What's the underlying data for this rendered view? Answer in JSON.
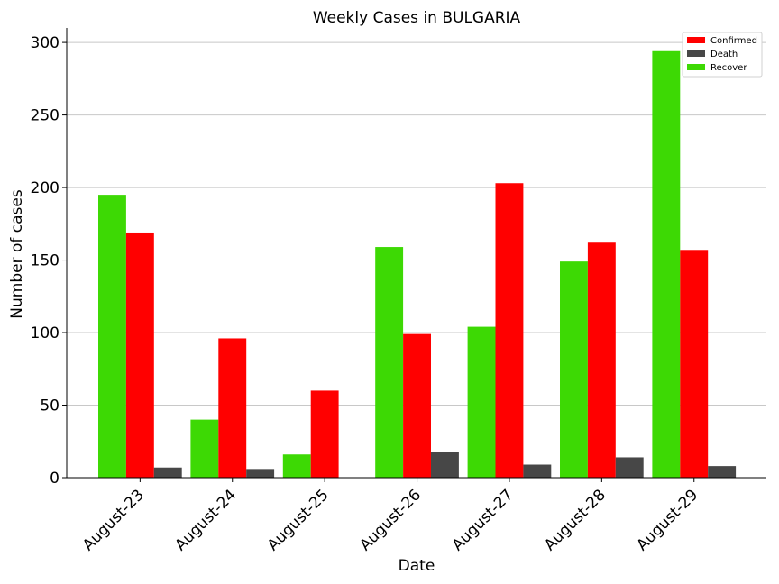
{
  "chart_data": {
    "type": "bar",
    "title": "Weekly Cases in BULGARIA",
    "xlabel": "Date",
    "ylabel": "Number of cases",
    "ylim": [
      0,
      310
    ],
    "yticks": [
      0,
      50,
      100,
      150,
      200,
      250,
      300
    ],
    "grid": "horizontal",
    "legend_position": "top-right",
    "categories": [
      "August-23",
      "August-24",
      "August-25",
      "August-26",
      "August-27",
      "August-28",
      "August-29"
    ],
    "series": [
      {
        "name": "Recover",
        "color": "#3dd904",
        "values": [
          195,
          40,
          16,
          159,
          104,
          149,
          294
        ]
      },
      {
        "name": "Confirmed",
        "color": "#ff0000",
        "values": [
          169,
          96,
          60,
          99,
          203,
          162,
          157
        ]
      },
      {
        "name": "Death",
        "color": "#474747",
        "values": [
          7,
          6,
          0,
          18,
          9,
          14,
          8
        ]
      }
    ],
    "legend_order": [
      "Confirmed",
      "Death",
      "Recover"
    ]
  }
}
